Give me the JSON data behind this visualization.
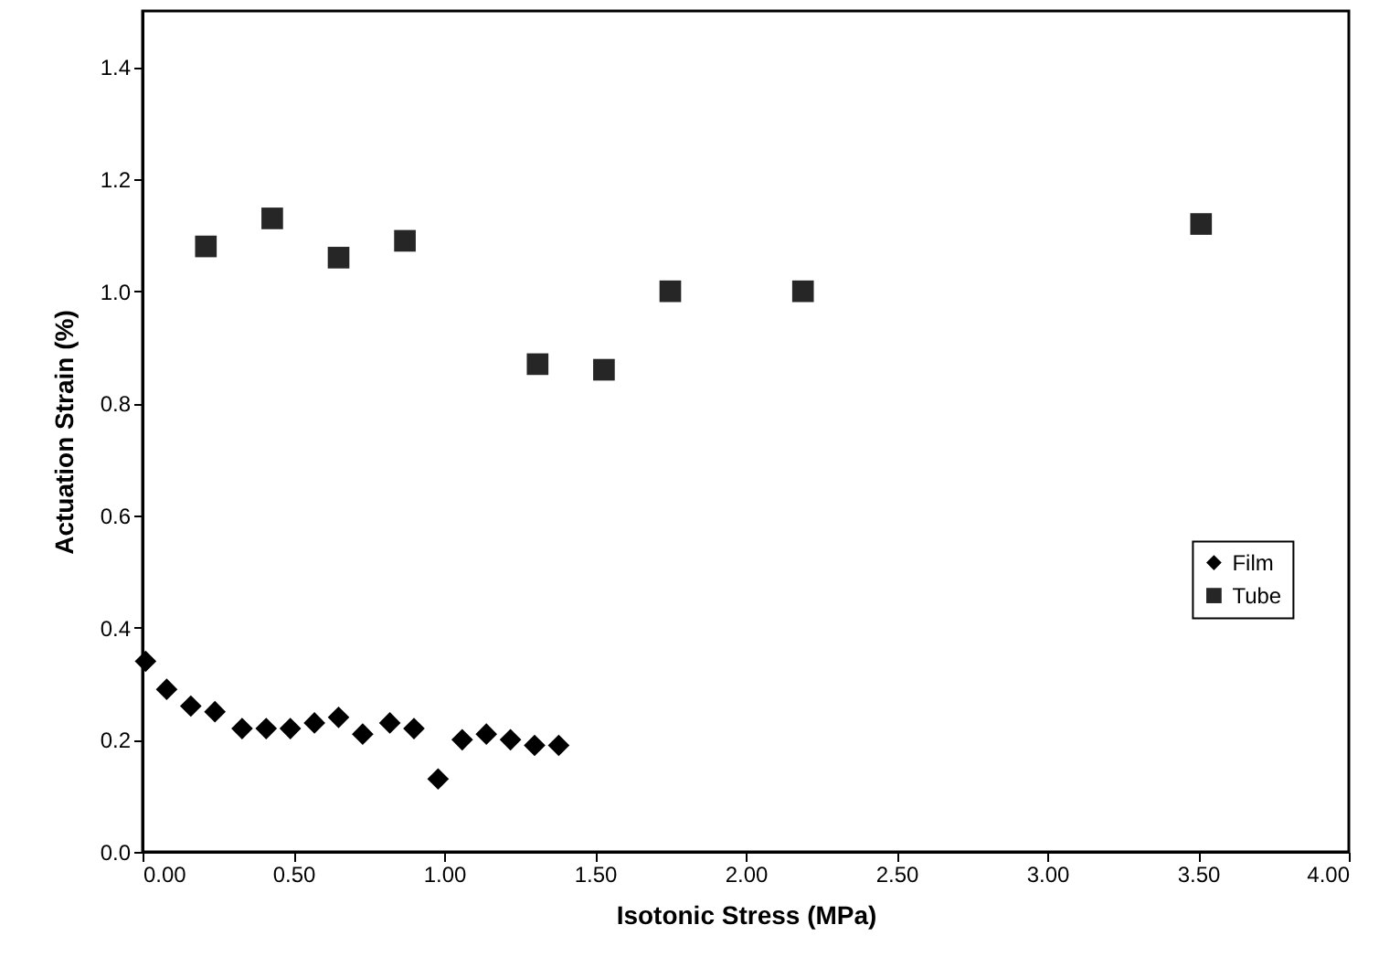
{
  "chart_data": {
    "type": "scatter",
    "xlabel": "Isotonic Stress (MPa)",
    "ylabel": "Actuation Strain (%)",
    "xlim": [
      0,
      4
    ],
    "ylim": [
      0,
      1.5
    ],
    "xticks": [
      {
        "value": 0,
        "label": "0.00"
      },
      {
        "value": 0.5,
        "label": "0.50"
      },
      {
        "value": 1,
        "label": "1.00"
      },
      {
        "value": 1.5,
        "label": "1.50"
      },
      {
        "value": 2,
        "label": "2.00"
      },
      {
        "value": 2.5,
        "label": "2.50"
      },
      {
        "value": 3,
        "label": "3.00"
      },
      {
        "value": 3.5,
        "label": "3.50"
      },
      {
        "value": 4,
        "label": "4.00"
      }
    ],
    "yticks": [
      {
        "value": 0,
        "label": "0.0"
      },
      0.2,
      0.4,
      0.6,
      0.8,
      {
        "value": 1,
        "label": "1.0"
      },
      1.2,
      1.4
    ],
    "grid": false,
    "legend": "bottom right",
    "series": [
      {
        "name": "Film",
        "color": "#000000",
        "marker": "diamond",
        "x": [
          0.01,
          0.08,
          0.16,
          0.24,
          0.33,
          0.41,
          0.49,
          0.57,
          0.65,
          0.73,
          0.82,
          0.9,
          0.98,
          1.06,
          1.14,
          1.22,
          1.3,
          1.38
        ],
        "values": [
          0.34,
          0.29,
          0.26,
          0.25,
          0.22,
          0.22,
          0.22,
          0.23,
          0.24,
          0.21,
          0.23,
          0.22,
          0.13,
          0.2,
          0.21,
          0.2,
          0.19,
          0.19
        ]
      },
      {
        "name": "Tube",
        "color": "#262626",
        "marker": "square",
        "x": [
          0.21,
          0.43,
          0.65,
          0.87,
          1.31,
          1.53,
          1.75,
          2.19,
          3.51
        ],
        "values": [
          1.08,
          1.13,
          1.06,
          1.09,
          0.87,
          0.86,
          1.0,
          1.0,
          1.12
        ]
      }
    ]
  }
}
